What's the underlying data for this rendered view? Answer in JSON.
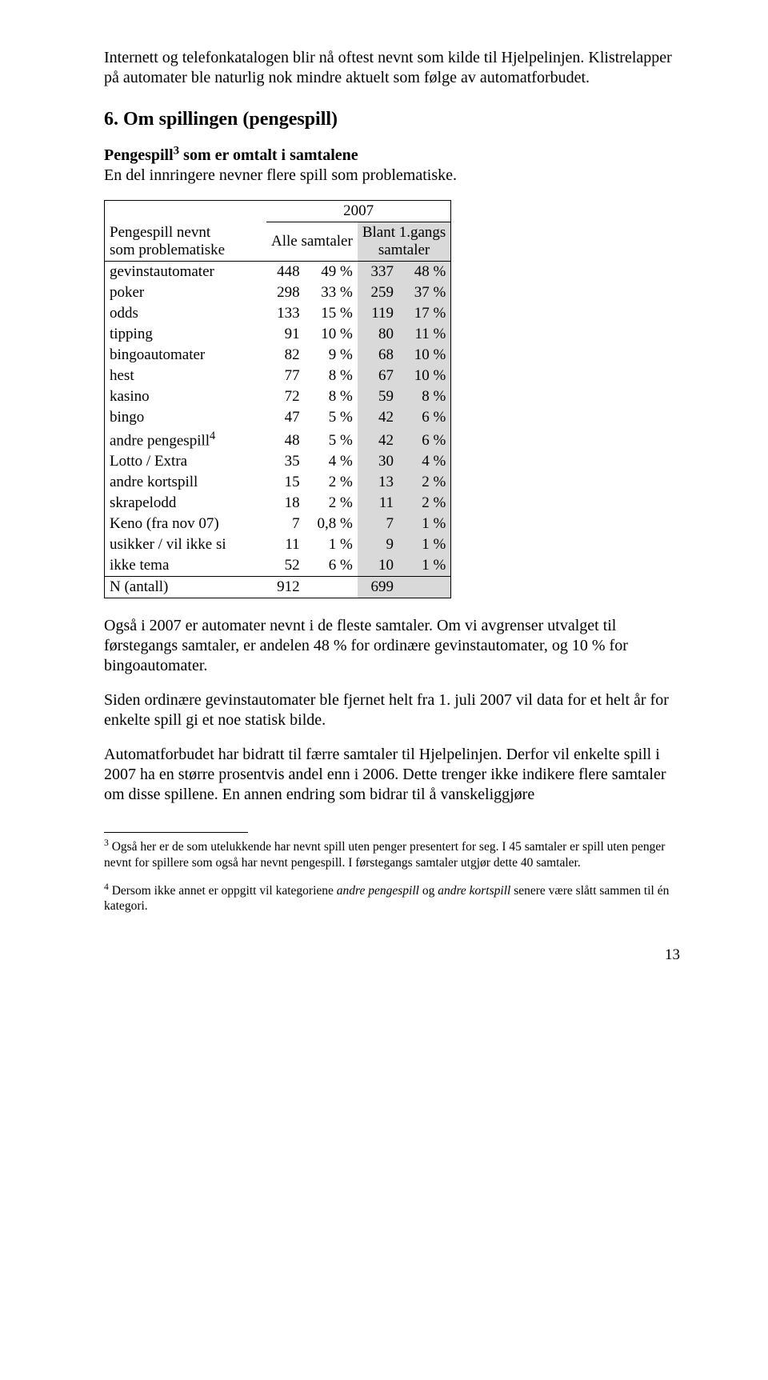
{
  "intro": {
    "p1": "Internett og telefonkatalogen blir nå oftest nevnt som kilde til Hjelpelinjen. Klistrelapper på automater ble naturlig nok mindre aktuelt som følge av automatforbudet."
  },
  "heading": "6.    Om spillingen (pengespill)",
  "sub": {
    "lead": "Pengespill",
    "sup": "3",
    "bold_rest": " som er omtalt i samtalene",
    "line2": "En del innringere nevner flere spill som problematiske."
  },
  "table": {
    "year": "2007",
    "col_a": "Alle samtaler",
    "col_b_l1": "Blant 1.gangs",
    "col_b_l2": "samtaler",
    "row_lbl_l1": "Pengespill nevnt",
    "row_lbl_l2": "som problematiske",
    "rows": [
      {
        "label": "gevinstautomater",
        "n1": "448",
        "p1": "49 %",
        "n2": "337",
        "p2": "48 %"
      },
      {
        "label": "poker",
        "n1": "298",
        "p1": "33 %",
        "n2": "259",
        "p2": "37 %"
      },
      {
        "label": "odds",
        "n1": "133",
        "p1": "15 %",
        "n2": "119",
        "p2": "17 %"
      },
      {
        "label": "tipping",
        "n1": "91",
        "p1": "10 %",
        "n2": "80",
        "p2": "11 %"
      },
      {
        "label": "bingoautomater",
        "n1": "82",
        "p1": "9 %",
        "n2": "68",
        "p2": "10 %"
      },
      {
        "label": "hest",
        "n1": "77",
        "p1": "8 %",
        "n2": "67",
        "p2": "10 %"
      },
      {
        "label": "kasino",
        "n1": "72",
        "p1": "8 %",
        "n2": "59",
        "p2": "8 %"
      },
      {
        "label": "bingo",
        "n1": "47",
        "p1": "5 %",
        "n2": "42",
        "p2": "6 %"
      },
      {
        "label": "andre pengespill",
        "sup": "4",
        "n1": "48",
        "p1": "5 %",
        "n2": "42",
        "p2": "6 %"
      },
      {
        "label": "Lotto / Extra",
        "n1": "35",
        "p1": "4 %",
        "n2": "30",
        "p2": "4 %"
      },
      {
        "label": "andre kortspill",
        "n1": "15",
        "p1": "2 %",
        "n2": "13",
        "p2": "2 %"
      },
      {
        "label": "skrapelodd",
        "n1": "18",
        "p1": "2 %",
        "n2": "11",
        "p2": "2 %"
      },
      {
        "label": "Keno (fra nov 07)",
        "n1": "7",
        "p1": "0,8 %",
        "n2": "7",
        "p2": "1 %"
      },
      {
        "label": "usikker / vil ikke si",
        "n1": "11",
        "p1": "1 %",
        "n2": "9",
        "p2": "1 %"
      },
      {
        "label": "ikke tema",
        "n1": "52",
        "p1": "6 %",
        "n2": "10",
        "p2": "1 %"
      }
    ],
    "total_label": "N (antall)",
    "total_n1": "912",
    "total_n2": "699",
    "colors": {
      "shade": "#d9d9d9",
      "border": "#000000"
    }
  },
  "body": {
    "p2": "Også i 2007 er automater nevnt i de fleste samtaler. Om vi avgrenser utvalget til førstegangs samtaler, er andelen 48 % for ordinære gevinstautomater, og 10 % for bingoautomater.",
    "p3": "Siden ordinære gevinstautomater ble fjernet helt fra 1. juli 2007 vil data for et helt år for enkelte spill gi et noe statisk bilde.",
    "p4": "Automatforbudet har bidratt til færre samtaler til Hjelpelinjen. Derfor vil enkelte spill i 2007 ha en større prosentvis andel enn i 2006. Dette trenger ikke indikere flere samtaler om disse spillene. En annen endring som bidrar til å vanskeliggjøre"
  },
  "footnotes": {
    "f3_sup": "3",
    "f3": " Også her er de som utelukkende har nevnt spill uten penger presentert for seg. I 45 samtaler er spill uten penger nevnt for spillere som også har nevnt pengespill. I førstegangs samtaler utgjør dette 40 samtaler.",
    "f4_sup": "4",
    "f4_a": " Dersom ikke annet er oppgitt vil kategoriene ",
    "f4_i1": "andre pengespill",
    "f4_b": " og ",
    "f4_i2": "andre kortspill",
    "f4_c": " senere være slått sammen til én kategori."
  },
  "pagenum": "13"
}
